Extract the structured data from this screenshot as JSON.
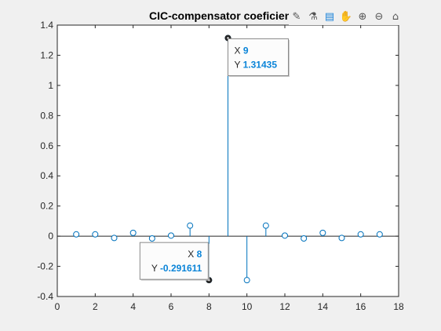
{
  "figure": {
    "title": "CIC-compensator coeficients"
  },
  "toolbar": {
    "items": [
      {
        "name": "brush-icon",
        "glyph": "✎"
      },
      {
        "name": "data-cursor-icon",
        "glyph": "⚗"
      },
      {
        "name": "pan-rotate-icon",
        "glyph": "▤"
      },
      {
        "name": "pan-hand-icon",
        "glyph": "✋"
      },
      {
        "name": "zoom-in-icon",
        "glyph": "⊕"
      },
      {
        "name": "zoom-out-icon",
        "glyph": "⊖"
      },
      {
        "name": "home-icon",
        "glyph": "⌂"
      }
    ]
  },
  "chart_data": {
    "type": "stem",
    "title": "CIC-compensator coeficients",
    "xlabel": "",
    "ylabel": "",
    "xlim": [
      0,
      18
    ],
    "ylim": [
      -0.4,
      1.4
    ],
    "xticks": [
      0,
      2,
      4,
      6,
      8,
      10,
      12,
      14,
      16,
      18
    ],
    "yticks": [
      -0.4,
      -0.2,
      0,
      0.2,
      0.4,
      0.6,
      0.8,
      1,
      1.2,
      1.4
    ],
    "ytick_labels": [
      "-0.4",
      "-0.2",
      "0",
      "0.2",
      "0.4",
      "0.6",
      "0.8",
      "1",
      "1.2",
      "1.4"
    ],
    "grid": false,
    "color": "#0072bd",
    "series": [
      {
        "x": [
          1,
          2,
          3,
          4,
          5,
          6,
          7,
          8,
          9,
          10,
          11,
          12,
          13,
          14,
          15,
          16,
          17
        ],
        "values": [
          0.012,
          0.012,
          -0.012,
          0.022,
          -0.015,
          0.004,
          0.07,
          -0.291611,
          1.31435,
          -0.291611,
          0.07,
          0.004,
          -0.015,
          0.022,
          -0.012,
          0.012,
          0.012
        ]
      }
    ],
    "datatips": [
      {
        "x_label": "X",
        "x_value": "9",
        "y_label": "Y",
        "y_value": "1.31435",
        "point_x": 9,
        "point_y": 1.31435
      },
      {
        "x_label": "X",
        "x_value": "8",
        "y_label": "Y",
        "y_value": "-0.291611",
        "point_x": 8,
        "point_y": -0.291611
      }
    ],
    "datatip_value_color": "#0a84d8"
  }
}
